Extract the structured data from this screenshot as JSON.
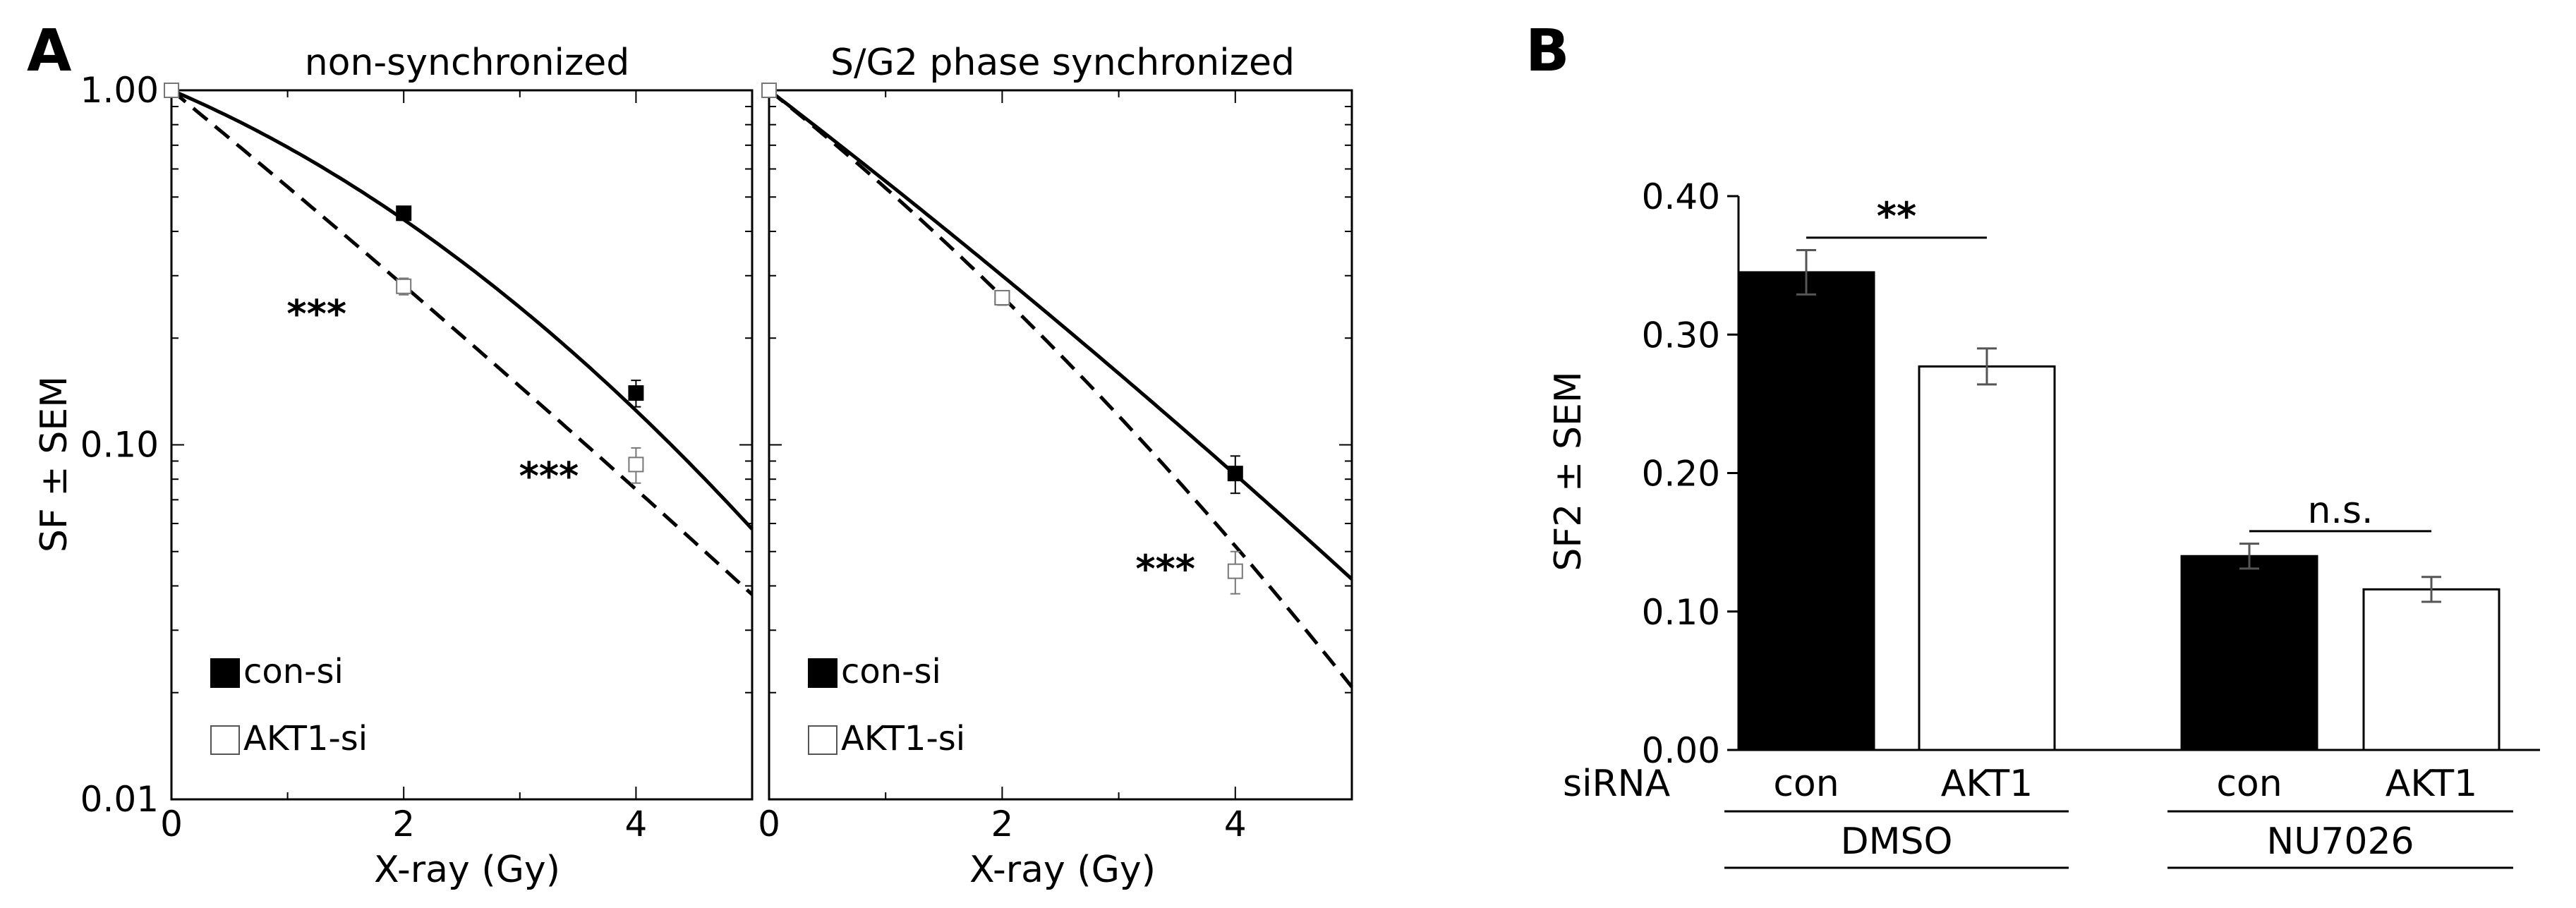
{
  "panel_labels": {
    "a": "A",
    "b": "B"
  },
  "chart_data": [
    {
      "type": "line",
      "title": "non-synchronized",
      "xlabel": "X-ray (Gy)",
      "ylabel": "SF ± SEM",
      "xlim": [
        0,
        5
      ],
      "ylim": [
        0.01,
        1
      ],
      "yscale": "log",
      "xticks": [
        "0",
        "2",
        "4"
      ],
      "yticks": [
        "0.01",
        "0.10",
        "1.00"
      ],
      "series": [
        {
          "name": "con-si",
          "style": "solid",
          "marker": "filled-square",
          "x": [
            0,
            2,
            4
          ],
          "y": [
            1.0,
            0.45,
            0.14
          ],
          "err": [
            0,
            0.02,
            0.012
          ],
          "fit": {
            "alpha": 0.32,
            "beta": 0.05
          }
        },
        {
          "name": "AKT1-si",
          "style": "dashed",
          "marker": "open-square",
          "x": [
            0,
            2,
            4
          ],
          "y": [
            1.0,
            0.28,
            0.088
          ],
          "err": [
            0,
            0.015,
            0.01
          ],
          "fit": {
            "alpha": 0.62,
            "beta": 0.007
          }
        }
      ],
      "annotations": [
        {
          "text": "***",
          "x": 1.25,
          "y": 0.215
        },
        {
          "text": "***",
          "x": 3.25,
          "y": 0.075
        }
      ]
    },
    {
      "type": "line",
      "title": "S/G2 phase synchronized",
      "xlabel": "X-ray (Gy)",
      "ylabel": "",
      "xlim": [
        0,
        5
      ],
      "ylim": [
        0.01,
        1
      ],
      "yscale": "log",
      "xticks": [
        "0",
        "2",
        "4"
      ],
      "series": [
        {
          "name": "con-si",
          "style": "solid",
          "marker": "filled-square",
          "x": [
            0,
            2,
            4
          ],
          "y": [
            1.0,
            0.26,
            0.083
          ],
          "err": [
            0,
            0.012,
            0.01
          ],
          "fit": {
            "alpha": 0.58,
            "beta": 0.011
          }
        },
        {
          "name": "AKT1-si",
          "style": "dashed",
          "marker": "open-square",
          "x": [
            0,
            2,
            4
          ],
          "y": [
            1.0,
            0.26,
            0.044
          ],
          "err": [
            0,
            0.012,
            0.006
          ],
          "fit": {
            "alpha": 0.6,
            "beta": 0.035
          }
        }
      ],
      "annotations": [
        {
          "text": "***",
          "x": 3.4,
          "y": 0.041
        }
      ]
    },
    {
      "type": "bar",
      "title": "",
      "ylabel": "SF2 ± SEM",
      "ylim": [
        0,
        0.4
      ],
      "yticks": [
        "0.00",
        "0.10",
        "0.20",
        "0.30",
        "0.40"
      ],
      "row_label": "siRNA",
      "categories": [
        "con",
        "AKT1",
        "con",
        "AKT1"
      ],
      "groups": [
        {
          "name": "DMSO",
          "span": [
            0,
            1
          ]
        },
        {
          "name": "NU7026",
          "span": [
            2,
            3
          ]
        }
      ],
      "values": [
        0.345,
        0.277,
        0.14,
        0.116
      ],
      "errors": [
        0.016,
        0.013,
        0.009,
        0.009
      ],
      "fills": [
        "#000000",
        "#ffffff",
        "#000000",
        "#ffffff"
      ],
      "significance": [
        {
          "text": "**",
          "between": [
            0,
            1
          ],
          "y": 0.37
        },
        {
          "text": "n.s.",
          "between": [
            2,
            3
          ],
          "y": 0.158
        }
      ]
    }
  ]
}
